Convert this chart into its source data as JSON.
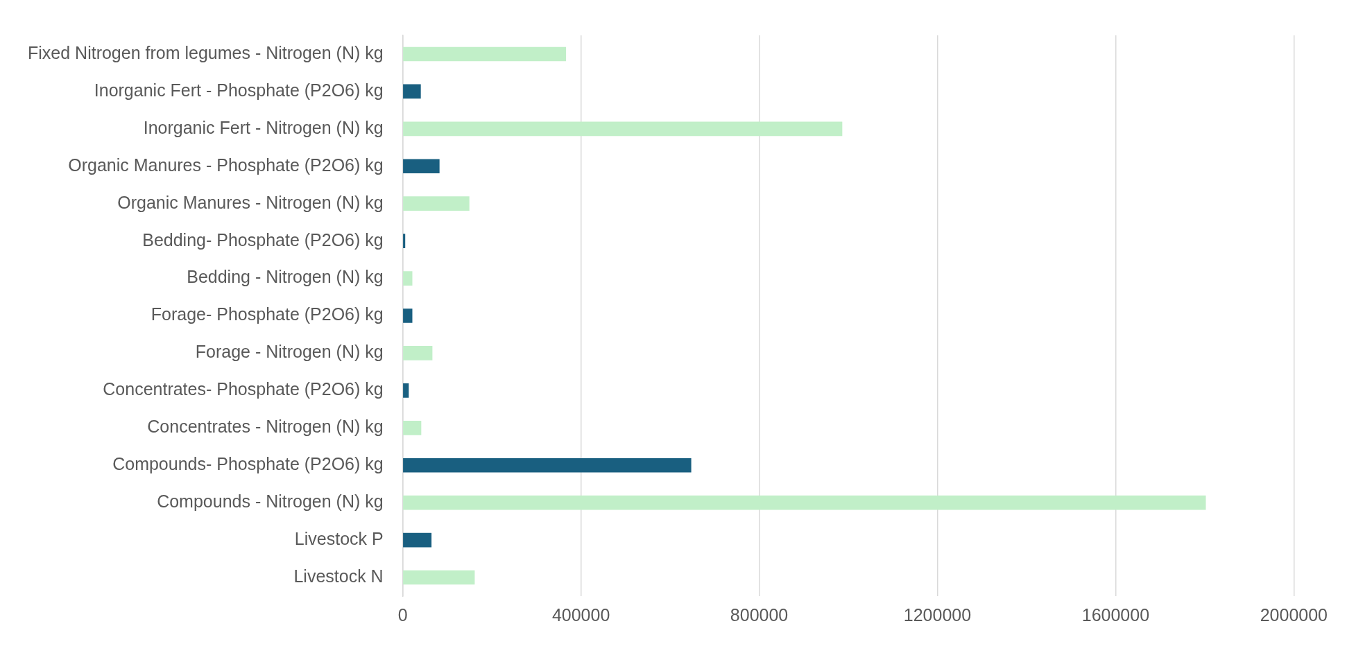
{
  "chart_data": {
    "type": "bar",
    "orientation": "horizontal",
    "categories": [
      "Fixed Nitrogen from legumes - Nitrogen (N) kg",
      "Inorganic Fert - Phosphate (P2O6) kg",
      "Inorganic Fert - Nitrogen (N) kg",
      "Organic Manures - Phosphate (P2O6) kg",
      "Organic Manures - Nitrogen (N) kg",
      "Bedding- Phosphate (P2O6) kg",
      "Bedding - Nitrogen (N) kg",
      "Forage- Phosphate (P2O6) kg",
      "Forage - Nitrogen (N) kg",
      "Concentrates- Phosphate (P2O6) kg",
      "Concentrates - Nitrogen (N) kg",
      "Compounds- Phosphate (P2O6) kg",
      "Compounds - Nitrogen (N) kg",
      "Livestock P",
      "Livestock N"
    ],
    "values": [
      366000,
      40000,
      986000,
      82000,
      149000,
      5000,
      21000,
      21000,
      66000,
      13000,
      41000,
      647000,
      1802000,
      64000,
      161000
    ],
    "colors": [
      "#c1efc8",
      "#195f80",
      "#c1efc8",
      "#195f80",
      "#c1efc8",
      "#195f80",
      "#c1efc8",
      "#195f80",
      "#c1efc8",
      "#195f80",
      "#c1efc8",
      "#195f80",
      "#c1efc8",
      "#195f80",
      "#c1efc8"
    ],
    "xlim": [
      0,
      2000000
    ],
    "xticks": [
      0,
      400000,
      800000,
      1200000,
      1600000,
      2000000
    ],
    "grid": "x",
    "legend": false
  }
}
